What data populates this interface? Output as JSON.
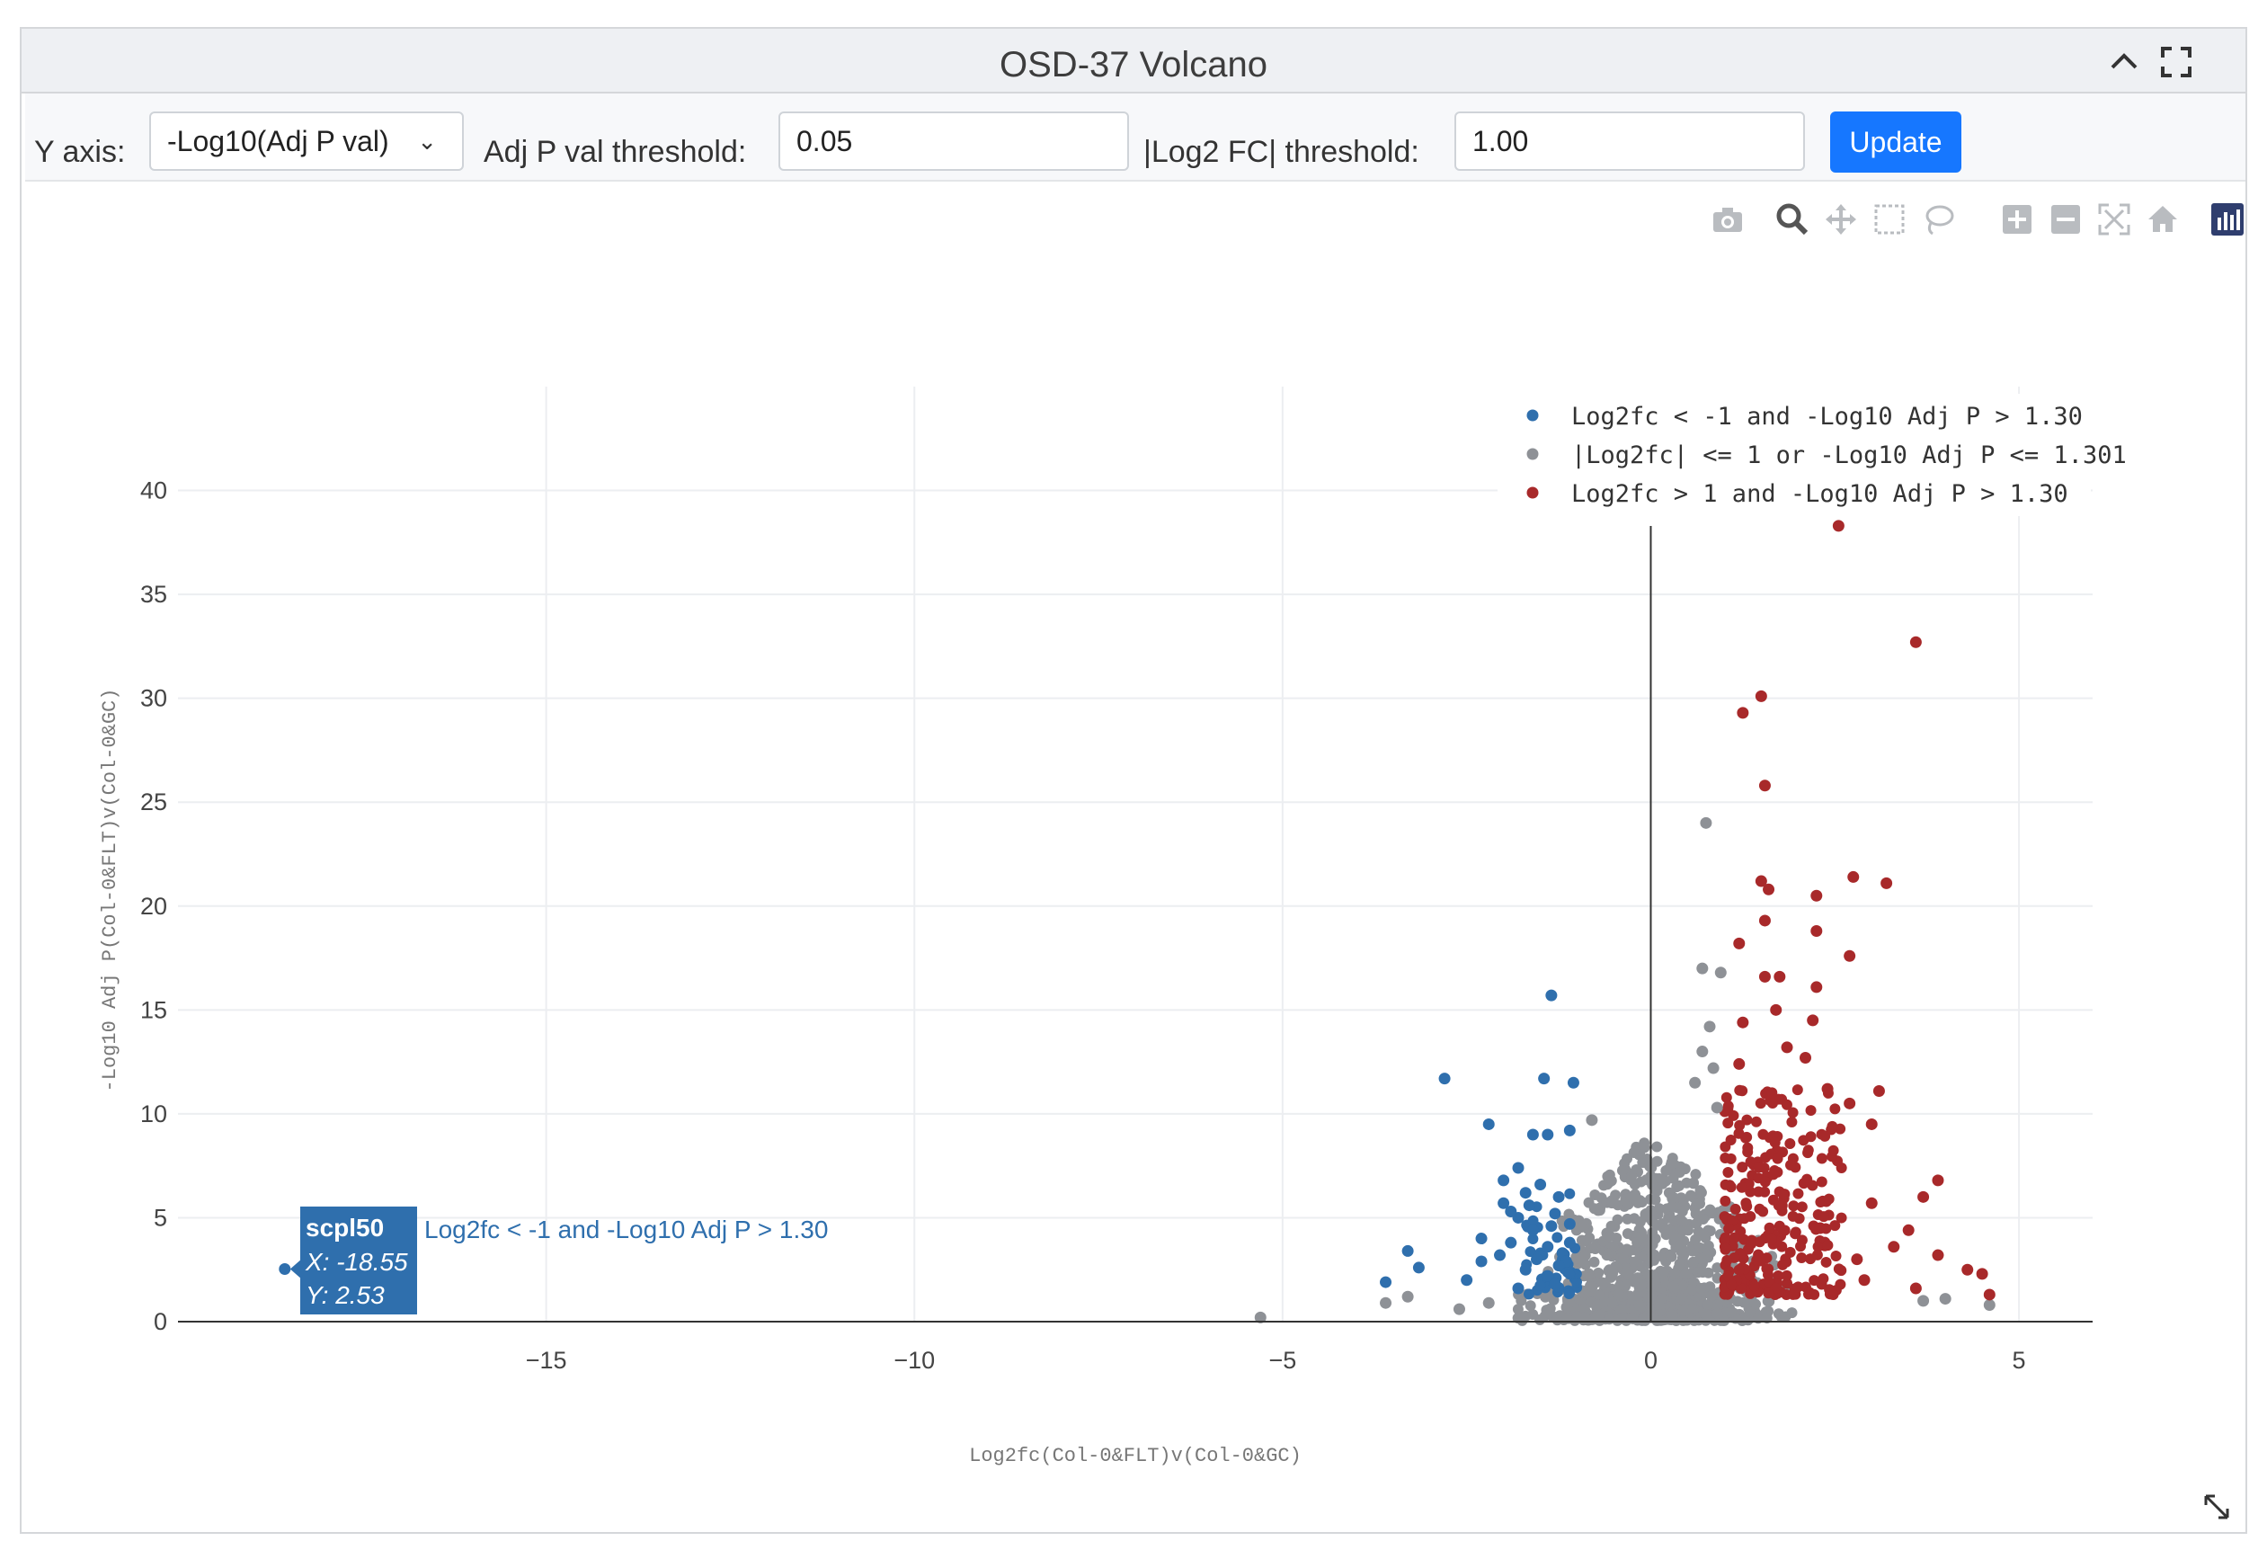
{
  "panel": {
    "title": "OSD-37 Volcano",
    "collapse_icon": "chevron-up-icon",
    "fullscreen_icon": "fullscreen-icon"
  },
  "controls": {
    "y_axis_label": "Y axis:",
    "y_axis_value": "-Log10(Adj P val)",
    "adj_p_label": "Adj P val threshold:",
    "adj_p_value": "0.05",
    "log2fc_label": "|Log2 FC| threshold:",
    "log2fc_value": "1.00",
    "update_label": "Update"
  },
  "modebar": [
    "camera-icon",
    "zoom-icon",
    "pan-icon",
    "box-select-icon",
    "lasso-icon",
    "zoom-in-icon",
    "zoom-out-icon",
    "autoscale-icon",
    "reset-axes-icon",
    "plotly-logo-icon"
  ],
  "colors": {
    "down": "#2f6fad",
    "ns": "#8e9196",
    "up": "#a8292a",
    "accent": "#1677ff"
  },
  "chart_data": {
    "type": "scatter",
    "xlabel": "Log2fc(Col-0&FLT)v(Col-0&GC)",
    "ylabel": "-Log10 Adj P(Col-0&FLT)v(Col-0&GC)",
    "xlim": [
      -20,
      6
    ],
    "ylim": [
      0,
      45
    ],
    "x_ticks": [
      "−15",
      "−10",
      "−5",
      "0",
      "5"
    ],
    "x_tick_values": [
      -15,
      -10,
      -5,
      0,
      5
    ],
    "y_ticks": [
      "0",
      "5",
      "10",
      "15",
      "20",
      "25",
      "30",
      "35",
      "40"
    ],
    "y_tick_values": [
      0,
      5,
      10,
      15,
      20,
      25,
      30,
      35,
      40
    ],
    "grid": true,
    "legend_position": "top-right",
    "series": [
      {
        "name": "Log2fc < -1 and -Log10 Adj P > 1.30",
        "color": "#2f6fad",
        "points": [
          [
            -18.55,
            2.53
          ],
          [
            -1.35,
            15.7
          ],
          [
            -2.8,
            11.7
          ],
          [
            -1.45,
            11.7
          ],
          [
            -1.05,
            11.5
          ],
          [
            -2.2,
            9.5
          ],
          [
            -1.4,
            9.0
          ],
          [
            -1.6,
            9.0
          ],
          [
            -1.1,
            9.2
          ],
          [
            -1.8,
            7.4
          ],
          [
            -2.0,
            6.8
          ],
          [
            -1.7,
            6.2
          ],
          [
            -1.5,
            6.6
          ],
          [
            -1.25,
            6.0
          ],
          [
            -2.0,
            5.7
          ],
          [
            -1.8,
            5.0
          ],
          [
            -1.3,
            5.2
          ],
          [
            -1.1,
            4.7
          ],
          [
            -1.6,
            4.4
          ],
          [
            -2.3,
            4.0
          ],
          [
            -1.9,
            3.8
          ],
          [
            -1.4,
            3.6
          ],
          [
            -1.2,
            3.3
          ],
          [
            -3.3,
            3.4
          ],
          [
            -3.15,
            2.6
          ],
          [
            -2.5,
            2.0
          ],
          [
            -2.3,
            2.9
          ],
          [
            -1.7,
            2.5
          ],
          [
            -1.4,
            2.2
          ],
          [
            -1.15,
            2.9
          ],
          [
            -3.6,
            1.9
          ],
          [
            -1.8,
            1.6
          ],
          [
            -1.3,
            1.8
          ],
          [
            -2.05,
            3.2
          ],
          [
            -1.55,
            3.0
          ],
          [
            -1.25,
            2.7
          ],
          [
            -1.1,
            3.8
          ],
          [
            -1.65,
            5.6
          ],
          [
            -1.35,
            4.6
          ],
          [
            -1.9,
            5.3
          ]
        ]
      },
      {
        "name": "|Log2fc| <= 1 or -Log10 Adj P <= 1.301",
        "color": "#8e9196",
        "points": [
          [
            0.75,
            24.0
          ],
          [
            0.7,
            17.0
          ],
          [
            0.95,
            16.8
          ],
          [
            0.8,
            14.2
          ],
          [
            -0.8,
            9.7
          ],
          [
            -5.3,
            0.2
          ],
          [
            -3.6,
            0.9
          ],
          [
            -3.3,
            1.2
          ],
          [
            -2.6,
            0.6
          ],
          [
            -2.2,
            0.9
          ],
          [
            3.7,
            1.0
          ],
          [
            4.0,
            1.1
          ],
          [
            4.6,
            0.8
          ],
          [
            0.6,
            11.5
          ],
          [
            0.7,
            13.0
          ],
          [
            0.85,
            12.2
          ],
          [
            0.9,
            10.3
          ]
        ]
      },
      {
        "name": "Log2fc > 1 and -Log10 Adj P > 1.30",
        "color": "#a8292a",
        "points": [
          [
            2.55,
            38.3
          ],
          [
            3.6,
            32.7
          ],
          [
            1.5,
            30.1
          ],
          [
            1.25,
            29.3
          ],
          [
            1.55,
            25.8
          ],
          [
            2.75,
            21.4
          ],
          [
            3.2,
            21.1
          ],
          [
            1.5,
            21.2
          ],
          [
            2.25,
            20.5
          ],
          [
            1.6,
            20.8
          ],
          [
            1.55,
            19.3
          ],
          [
            2.25,
            18.8
          ],
          [
            1.2,
            18.2
          ],
          [
            2.7,
            17.6
          ],
          [
            1.55,
            16.6
          ],
          [
            1.75,
            16.6
          ],
          [
            2.25,
            16.1
          ],
          [
            1.7,
            15.0
          ],
          [
            2.2,
            14.5
          ],
          [
            1.25,
            14.4
          ],
          [
            1.85,
            13.2
          ],
          [
            1.2,
            12.4
          ],
          [
            2.1,
            12.7
          ],
          [
            3.1,
            11.1
          ],
          [
            2.4,
            11.2
          ],
          [
            2.7,
            10.5
          ],
          [
            3.0,
            9.5
          ],
          [
            3.9,
            6.8
          ],
          [
            3.7,
            6.0
          ],
          [
            4.3,
            2.5
          ],
          [
            4.5,
            2.3
          ],
          [
            3.0,
            5.7
          ],
          [
            3.5,
            4.4
          ],
          [
            3.9,
            3.2
          ],
          [
            4.6,
            1.3
          ],
          [
            2.8,
            3.0
          ],
          [
            2.3,
            4.5
          ],
          [
            3.3,
            3.6
          ],
          [
            2.9,
            2.0
          ],
          [
            3.6,
            1.6
          ]
        ]
      }
    ]
  },
  "hover": {
    "label": "scpl50",
    "x_text": "X: -18.55",
    "y_text": "Y: 2.53",
    "category": "Log2fc < -1 and -Log10 Adj P > 1.30"
  }
}
